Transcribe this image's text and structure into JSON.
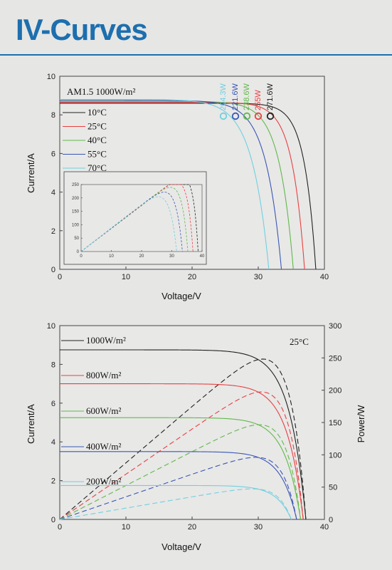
{
  "page": {
    "title": "IV-Curves"
  },
  "chart_data": [
    {
      "type": "line",
      "condition_label": "AM1.5  1000W/m²",
      "xlabel": "Voltage/V",
      "ylabel": "Current/A",
      "xlim": [
        0,
        40
      ],
      "ylim": [
        0,
        10
      ],
      "xticks": [
        0,
        10,
        20,
        30,
        40
      ],
      "yticks": [
        0,
        2,
        4,
        6,
        8,
        10
      ],
      "legend_position": "left",
      "series": [
        {
          "name": "10°C",
          "color": "#222222",
          "isc": 8.6,
          "voc": 38.7,
          "imp": 7.9,
          "vmp": 34.4,
          "pmax_label": "271.6W"
        },
        {
          "name": "25°C",
          "color": "#e8403f",
          "isc": 8.65,
          "voc": 37.0,
          "imp": 7.85,
          "vmp": 32.5,
          "pmax_label": "255W"
        },
        {
          "name": "40°C",
          "color": "#62b84a",
          "isc": 8.7,
          "voc": 35.3,
          "imp": 7.9,
          "vmp": 30.2,
          "pmax_label": "238.6W"
        },
        {
          "name": "55°C",
          "color": "#3b57b5",
          "isc": 8.75,
          "voc": 33.5,
          "imp": 7.9,
          "vmp": 28.0,
          "pmax_label": "221.6W"
        },
        {
          "name": "70°C",
          "color": "#6fd0df",
          "isc": 8.8,
          "voc": 31.6,
          "imp": 7.95,
          "vmp": 25.7,
          "pmax_label": "204.3W"
        }
      ],
      "inset": {
        "type": "line",
        "xlim": [
          0,
          40
        ],
        "ylim": [
          0,
          250
        ],
        "xticks": [
          0,
          10,
          20,
          30,
          40
        ],
        "yticks": [
          0,
          50,
          100,
          150,
          200,
          250
        ]
      }
    },
    {
      "type": "line",
      "condition_label": "25°C",
      "xlabel": "Voltage/V",
      "ylabel": "Current/A",
      "y2label": "Power/W",
      "xlim": [
        0,
        40
      ],
      "ylim": [
        0,
        10
      ],
      "y2lim": [
        0,
        300
      ],
      "xticks": [
        0,
        10,
        20,
        30,
        40
      ],
      "yticks": [
        0,
        2,
        4,
        6,
        8,
        10
      ],
      "y2ticks": [
        0,
        50,
        100,
        150,
        200,
        250,
        300
      ],
      "series": [
        {
          "name": "1000W/m²",
          "color": "#222222",
          "isc": 8.75,
          "voc": 37.2,
          "imp": 8.0,
          "vmp": 31.0
        },
        {
          "name": "800W/m²",
          "color": "#e8403f",
          "isc": 7.0,
          "voc": 36.8,
          "imp": 6.4,
          "vmp": 30.8
        },
        {
          "name": "600W/m²",
          "color": "#62b84a",
          "isc": 5.25,
          "voc": 36.4,
          "imp": 4.8,
          "vmp": 30.5
        },
        {
          "name": "400W/m²",
          "color": "#3b57b5",
          "isc": 3.5,
          "voc": 35.8,
          "imp": 3.2,
          "vmp": 30.0
        },
        {
          "name": "200W/m²",
          "color": "#6fd0df",
          "isc": 1.75,
          "voc": 35.0,
          "imp": 1.6,
          "vmp": 29.5
        }
      ]
    }
  ]
}
